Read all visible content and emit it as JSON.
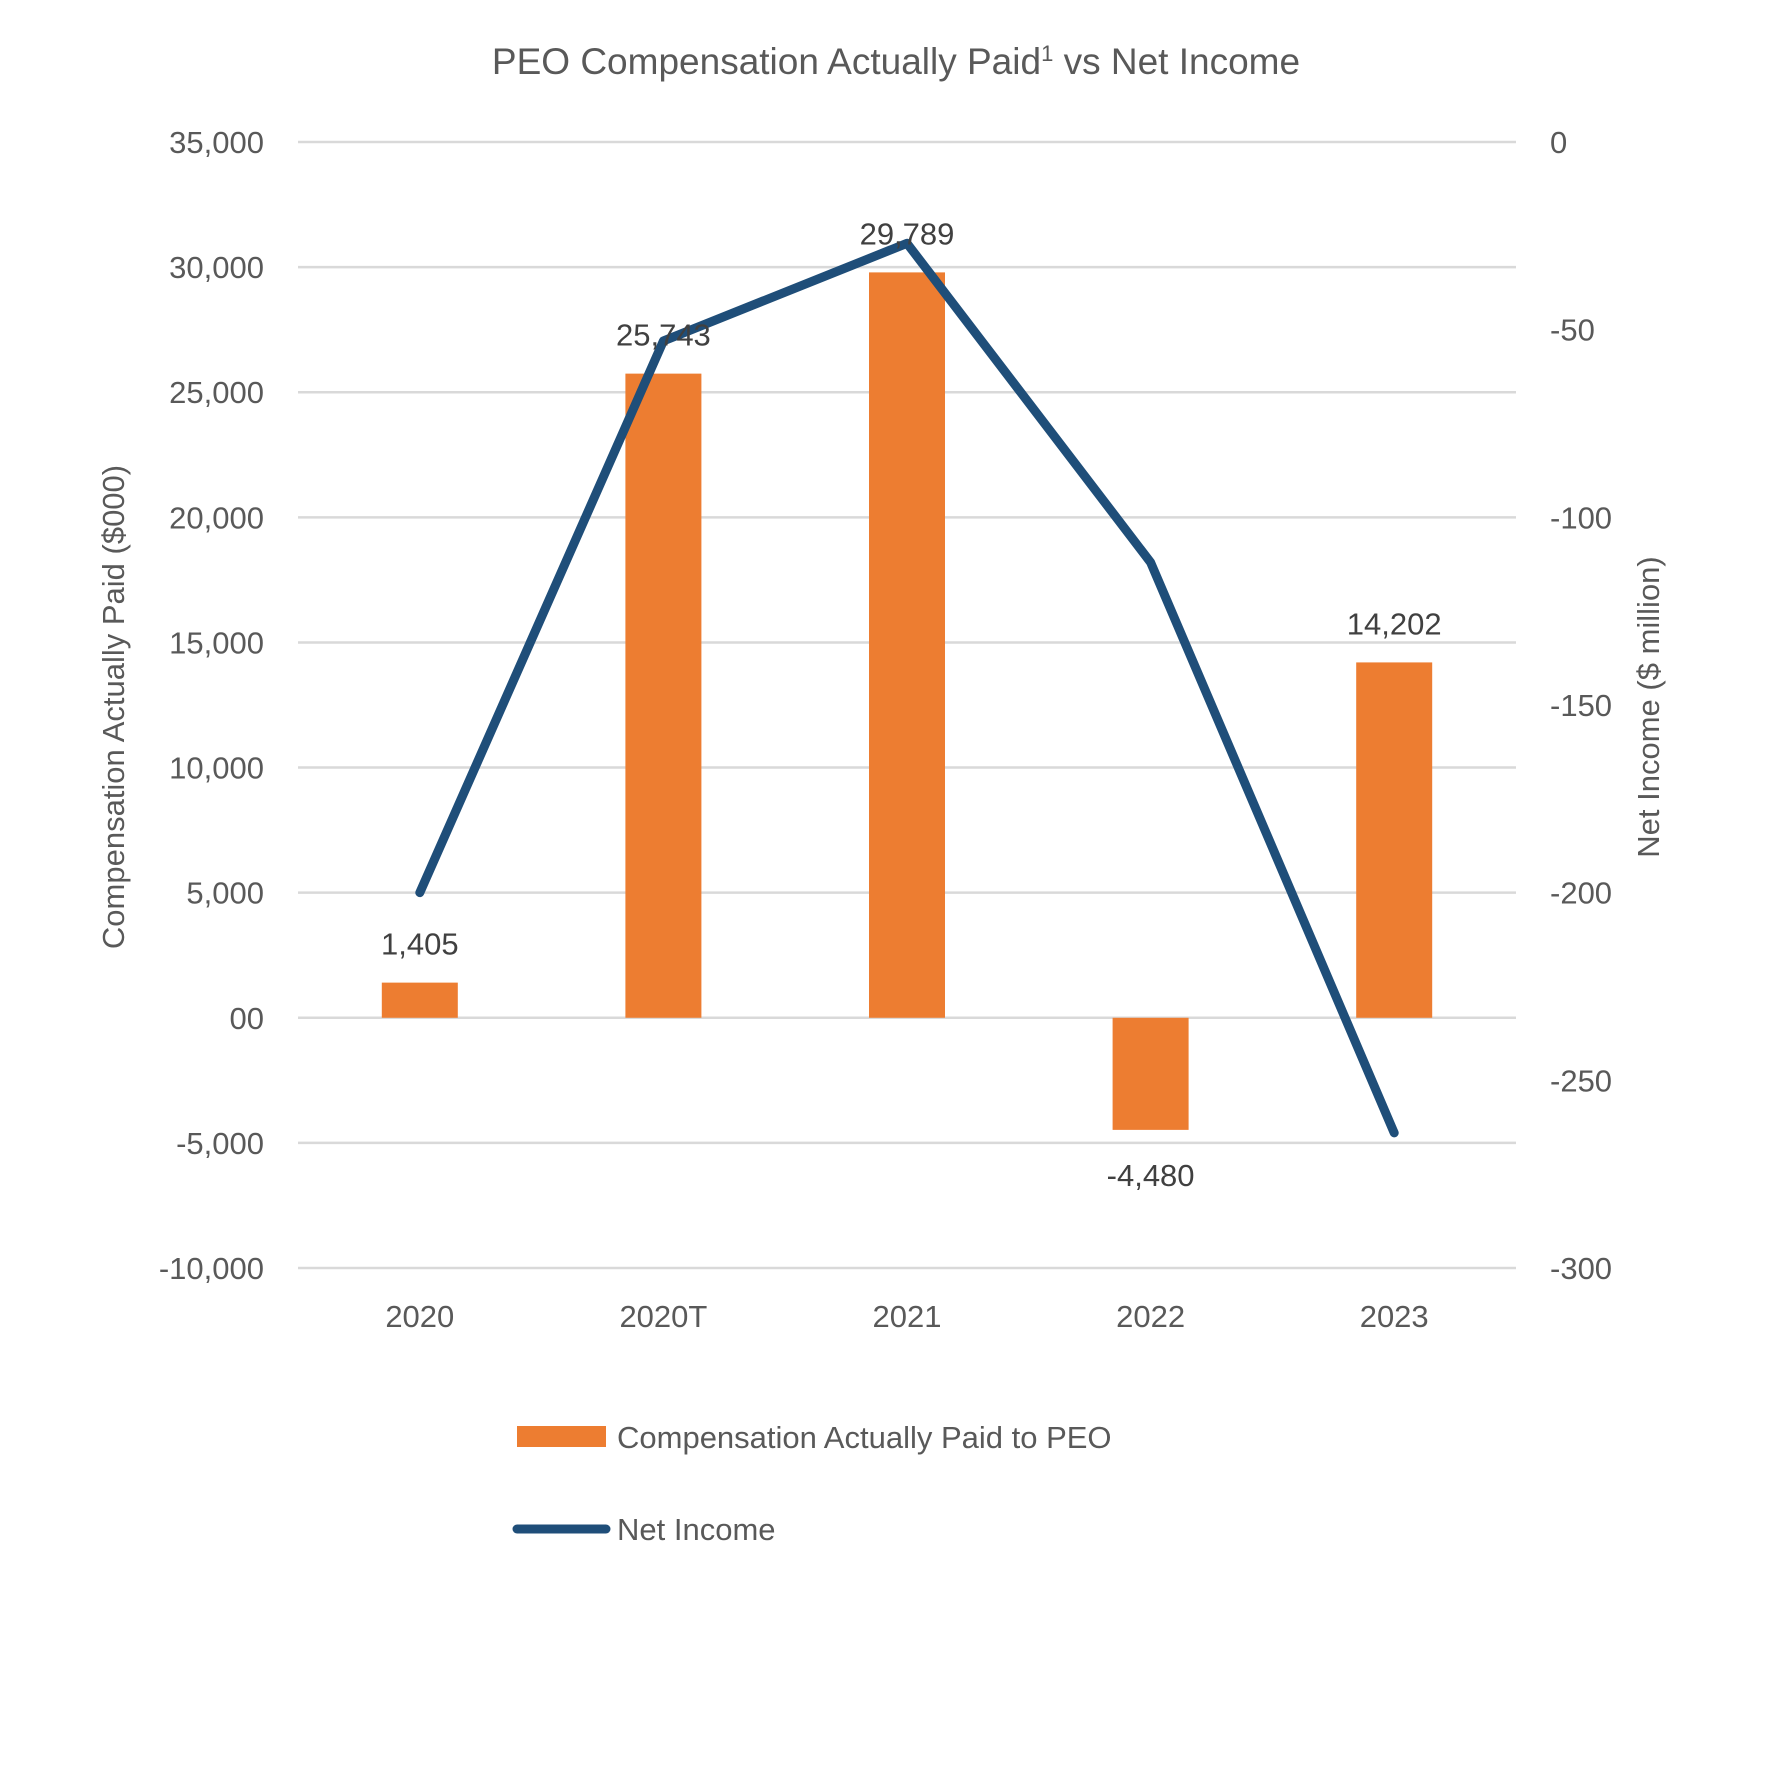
{
  "chart_data": {
    "type": "bar",
    "title": "PEO Compensation Actually Paid",
    "title_superscript": "1",
    "title_suffix": " vs Net Income",
    "categories": [
      "2020",
      "2020T",
      "2021",
      "2022",
      "2023"
    ],
    "series": [
      {
        "name": "Compensation Actually Paid to PEO",
        "type": "bar",
        "axis": "left",
        "values": [
          1405,
          25743,
          29789,
          -4480,
          14202
        ],
        "data_labels": [
          "1,405",
          "25,743",
          "29,789",
          "-4,480",
          "14,202"
        ]
      },
      {
        "name": "Net Income",
        "type": "line",
        "axis": "right",
        "values": [
          -200,
          -53,
          -27,
          -112,
          -264
        ]
      }
    ],
    "ylabel": "Compensation Actually Paid ($000)",
    "ylim": [
      -10000,
      35000
    ],
    "yticks": [
      35000,
      30000,
      25000,
      20000,
      15000,
      10000,
      5000,
      0,
      -5000,
      -10000
    ],
    "ytick_labels": [
      "35,000",
      "30,000",
      "25,000",
      "20,000",
      "15,000",
      "10,000",
      "5,000",
      "00",
      "-5,000",
      "-10,000"
    ],
    "y2label": "Net Income ($ million)",
    "y2lim": [
      -300,
      0
    ],
    "y2ticks": [
      0,
      -50,
      -100,
      -150,
      -200,
      -250,
      -300
    ],
    "y2tick_labels": [
      "0",
      "-50",
      "-100",
      "-150",
      "-200",
      "-250",
      "-300"
    ],
    "grid": true,
    "legend_position": "bottom",
    "colors": {
      "bar": "#ED7D31",
      "line": "#1F4E79",
      "grid": "#D9D9D9",
      "text": "#595959",
      "label": "#404040"
    }
  }
}
